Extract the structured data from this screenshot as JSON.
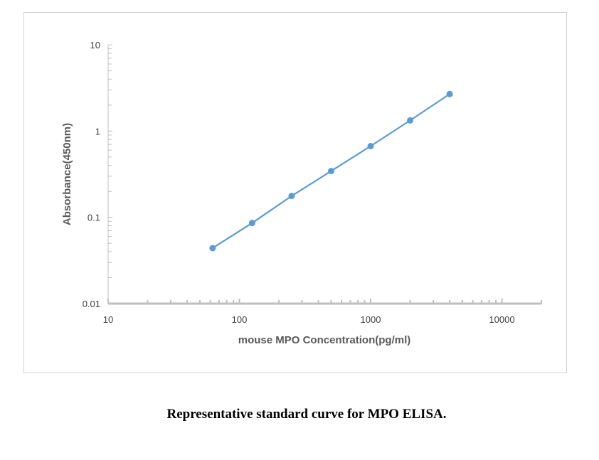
{
  "chart_data": {
    "type": "line",
    "title": "",
    "xlabel": "mouse MPO  Concentration(pg/ml)",
    "ylabel": "Absorbance(450nm)",
    "x_scale": "log",
    "y_scale": "log",
    "xlim": [
      10,
      20000
    ],
    "ylim": [
      0.01,
      10
    ],
    "x_ticks": [
      "10",
      "100",
      "1000",
      "10000"
    ],
    "y_ticks": [
      "0.01",
      "0.1",
      "1",
      "10"
    ],
    "grid": false,
    "legend": "none",
    "series": [
      {
        "x": [
          62.5,
          125,
          250,
          500,
          1000,
          2000,
          4000
        ],
        "y": [
          0.044,
          0.086,
          0.177,
          0.344,
          0.67,
          1.33,
          2.69
        ],
        "color": "#5b9bd5",
        "markers": true
      }
    ]
  },
  "caption": "Representative standard curve for MPO ELISA."
}
